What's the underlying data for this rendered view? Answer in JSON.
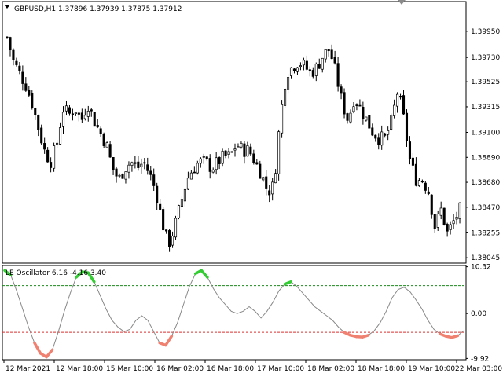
{
  "price_panel": {
    "symbol_label": "GBPUSD,H1",
    "ohlc_readout": "1.37896 1.37939 1.37875 1.37912"
  },
  "oscillator_panel": {
    "indicator_label": "LE Oscillator 6.16 -4.16 3.40"
  },
  "chart_data": [
    {
      "type": "candlestick",
      "title": "GBPUSD,H1",
      "y_ticks": [
        "1.39950",
        "1.39730",
        "1.39525",
        "1.39315",
        "1.39100",
        "1.38890",
        "1.38680",
        "1.38470",
        "1.38255",
        "1.38045"
      ],
      "ylim": [
        1.38,
        1.402
      ],
      "close_trend": [
        1.399,
        1.397,
        1.396,
        1.395,
        1.3935,
        1.3915,
        1.3895,
        1.3885,
        1.39,
        1.393,
        1.3925,
        1.393,
        1.392,
        1.3935,
        1.392,
        1.391,
        1.39,
        1.388,
        1.387,
        1.388,
        1.3885,
        1.388,
        1.3885,
        1.3875,
        1.386,
        1.3835,
        1.3815,
        1.383,
        1.385,
        1.387,
        1.388,
        1.3885,
        1.3885,
        1.388,
        1.3885,
        1.389,
        1.389,
        1.39,
        1.3895,
        1.3895,
        1.3885,
        1.3875,
        1.386,
        1.3865,
        1.392,
        1.396,
        1.3965,
        1.397,
        1.3965,
        1.396,
        1.3965,
        1.3975,
        1.398,
        1.396,
        1.3935,
        1.392,
        1.394,
        1.393,
        1.392,
        1.391,
        1.3905,
        1.3905,
        1.392,
        1.3945,
        1.392,
        1.3885,
        1.387,
        1.387,
        1.386,
        1.383,
        1.3845,
        1.3825,
        1.3835,
        1.3845
      ]
    },
    {
      "type": "line",
      "title": "LE Oscillator 6.16 -4.16 3.40",
      "y_ticks": [
        "10.32",
        "0.00",
        "-9.92"
      ],
      "ylim": [
        -10.2,
        10.6
      ],
      "upper_level": 6.16,
      "lower_level": -4.16,
      "values": [
        9.5,
        8.5,
        5.0,
        1.0,
        -3.0,
        -6.5,
        -8.8,
        -9.6,
        -8.0,
        -4.0,
        0.5,
        4.5,
        8.0,
        9.2,
        9.0,
        7.0,
        4.0,
        1.0,
        -1.5,
        -3.0,
        -4.0,
        -3.5,
        -1.5,
        -0.5,
        -1.5,
        -4.0,
        -6.5,
        -7.0,
        -5.0,
        -2.0,
        2.0,
        6.0,
        8.8,
        9.5,
        8.0,
        5.5,
        3.5,
        2.0,
        0.5,
        0.0,
        0.5,
        1.5,
        0.5,
        -1.0,
        0.5,
        2.5,
        5.0,
        6.5,
        7.0,
        6.0,
        4.5,
        3.0,
        1.5,
        0.5,
        -0.5,
        -1.5,
        -3.0,
        -4.2,
        -4.8,
        -5.1,
        -5.2,
        -4.8,
        -3.8,
        -2.0,
        0.5,
        3.5,
        5.3,
        5.8,
        4.8,
        3.0,
        1.0,
        -1.5,
        -3.5,
        -4.5,
        -5.0,
        -5.3,
        -4.9,
        -3.8
      ]
    }
  ],
  "x_axis": {
    "ticks": [
      "12 Mar 2021",
      "12 Mar 18:00",
      "15 Mar 10:00",
      "16 Mar 02:00",
      "16 Mar 18:00",
      "17 Mar 10:00",
      "18 Mar 02:00",
      "18 Mar 18:00",
      "19 Mar 10:00",
      "22 Mar 03:00"
    ]
  },
  "colors": {
    "bull": "#ffffff",
    "bear": "#000000",
    "osc_line": "#888888",
    "osc_high": "#33cc33",
    "osc_low": "#f08070",
    "upper_level": "#1a8a1a",
    "lower_level": "#d93030"
  }
}
